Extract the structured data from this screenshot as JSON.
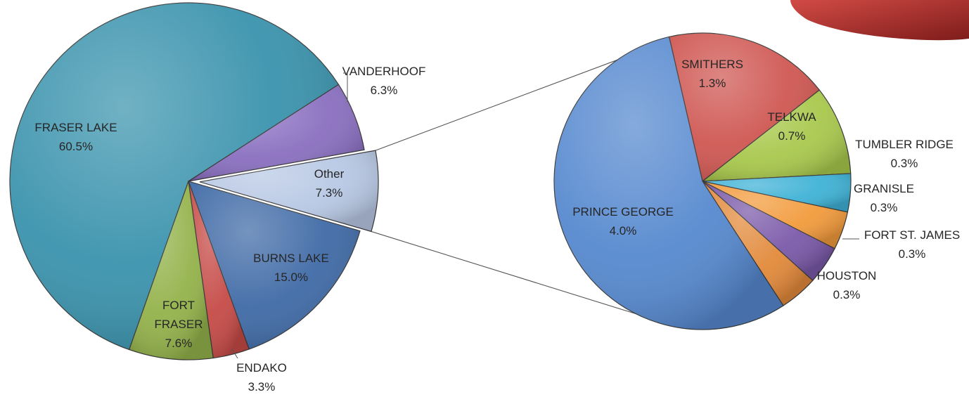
{
  "chart_data": [
    {
      "type": "pie",
      "slices": [
        {
          "label": "FRASER LAKE",
          "value_label": "60.5%",
          "value": 60.5,
          "color": "#3a93ad"
        },
        {
          "label": "VANDERHOOF",
          "value_label": "6.3%",
          "value": 6.3,
          "color": "#8a6fc0"
        },
        {
          "label": "Other",
          "value_label": "7.3%",
          "value": 7.3,
          "color": "#b8c8e4"
        },
        {
          "label": "BURNS LAKE",
          "value_label": "15.0%",
          "value": 15.0,
          "color": "#3f6aa6"
        },
        {
          "label": "ENDAKO",
          "value_label": "3.3%",
          "value": 3.3,
          "color": "#c54a46"
        },
        {
          "label": "FORT FRASER",
          "value_label": "7.6%",
          "value": 7.6,
          "color": "#93b24a"
        }
      ]
    },
    {
      "type": "pie",
      "slices": [
        {
          "label": "SMITHERS",
          "value_label": "1.3%",
          "value": 1.3,
          "color": "#cf5752"
        },
        {
          "label": "TELKWA",
          "value_label": "0.7%",
          "value": 0.7,
          "color": "#a8c84c"
        },
        {
          "label": "TUMBLER RIDGE",
          "value_label": "0.3%",
          "value": 0.3,
          "color": "#3fb2d6"
        },
        {
          "label": "GRANISLE",
          "value_label": "0.3%",
          "value": 0.3,
          "color": "#f29b3c"
        },
        {
          "label": "FORT ST. JAMES",
          "value_label": "0.3%",
          "value": 0.3,
          "color": "#7a59a8"
        },
        {
          "label": "HOUSTON",
          "value_label": "0.3%",
          "value": 0.3,
          "color": "#e2893a"
        },
        {
          "label": "PRINCE GEORGE",
          "value_label": "4.0%",
          "value": 4.0,
          "color": "#5689cf"
        }
      ]
    }
  ]
}
